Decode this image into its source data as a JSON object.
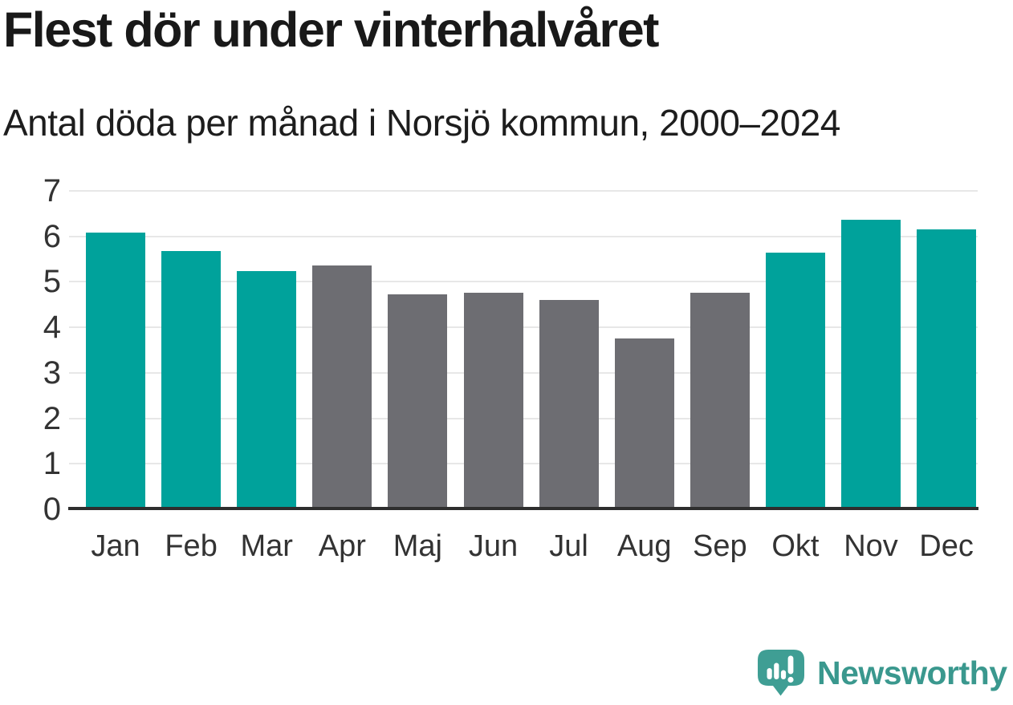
{
  "header": {
    "title": "Flest dör under vinterhalvåret",
    "subtitle": "Antal döda per månad i Norsjö kommun, 2000–2024"
  },
  "chart_data": {
    "type": "bar",
    "title": "Flest dör under vinterhalvåret",
    "subtitle": "Antal döda per månad i Norsjö kommun, 2000–2024",
    "categories": [
      "Jan",
      "Feb",
      "Mar",
      "Apr",
      "Maj",
      "Jun",
      "Jul",
      "Aug",
      "Sep",
      "Okt",
      "Nov",
      "Dec"
    ],
    "values": [
      6.08,
      5.68,
      5.24,
      5.36,
      4.72,
      4.76,
      4.6,
      3.76,
      4.76,
      5.64,
      6.36,
      6.16
    ],
    "bar_colors": [
      "#00a29b",
      "#00a29b",
      "#00a29b",
      "#6d6d72",
      "#6d6d72",
      "#6d6d72",
      "#6d6d72",
      "#6d6d72",
      "#6d6d72",
      "#00a29b",
      "#00a29b",
      "#00a29b"
    ],
    "highlight_color": "#00a29b",
    "muted_color": "#6d6d72",
    "highlighted_months": [
      "Okt",
      "Nov",
      "Dec",
      "Jan",
      "Feb",
      "Mar"
    ],
    "xlabel": "",
    "ylabel": "",
    "ylim": [
      0,
      7
    ],
    "yticks": [
      0,
      1,
      2,
      3,
      4,
      5,
      6,
      7
    ],
    "grid": "horizontal",
    "legend": "none",
    "gridline_color": "#e7e7e7",
    "axis_line_color": "#2e2e2e",
    "tick_label_color": "#333333"
  },
  "footer": {
    "brand": "Newsworthy",
    "brand_color": "#3a988e",
    "logo_color": "#3f9e94",
    "logo_icon": "speech-bubble-bar-chart-icon"
  }
}
